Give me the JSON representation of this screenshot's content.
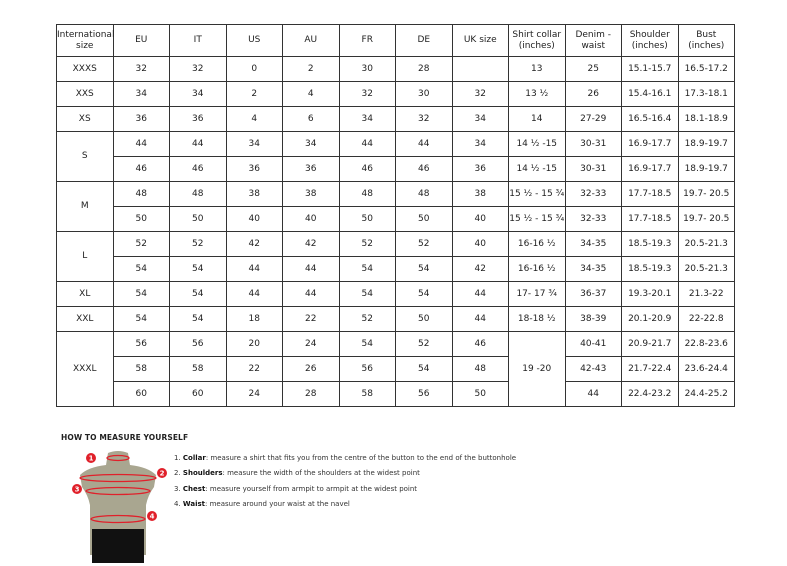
{
  "table": {
    "headers": [
      "International size",
      "EU",
      "IT",
      "US",
      "AU",
      "FR",
      "DE",
      "UK size",
      "Shirt collar (inches)",
      "Denim - waist",
      "Shoulder (inches)",
      "Bust (inches)"
    ],
    "groups": [
      {
        "size": "XXXS",
        "rows": [
          [
            "32",
            "32",
            "0",
            "2",
            "30",
            "28",
            "",
            "13",
            "25",
            "15.1-15.7",
            "16.5-17.2"
          ]
        ]
      },
      {
        "size": "XXS",
        "rows": [
          [
            "34",
            "34",
            "2",
            "4",
            "32",
            "30",
            "32",
            "13 ½",
            "26",
            "15.4-16.1",
            "17.3-18.1"
          ]
        ]
      },
      {
        "size": "XS",
        "rows": [
          [
            "36",
            "36",
            "4",
            "6",
            "34",
            "32",
            "34",
            "14",
            "27-29",
            "16.5-16.4",
            "18.1-18.9"
          ]
        ]
      },
      {
        "size": "S",
        "rows": [
          [
            "44",
            "44",
            "34",
            "34",
            "44",
            "44",
            "34",
            "14 ½ -15",
            "30-31",
            "16.9-17.7",
            "18.9-19.7"
          ],
          [
            "46",
            "46",
            "36",
            "36",
            "46",
            "46",
            "36",
            "14 ½ -15",
            "30-31",
            "16.9-17.7",
            "18.9-19.7"
          ]
        ]
      },
      {
        "size": "M",
        "rows": [
          [
            "48",
            "48",
            "38",
            "38",
            "48",
            "48",
            "38",
            "15 ½ - 15 ¾",
            "32-33",
            "17.7-18.5",
            "19.7- 20.5"
          ],
          [
            "50",
            "50",
            "40",
            "40",
            "50",
            "50",
            "40",
            "15 ½ - 15 ¾",
            "32-33",
            "17.7-18.5",
            "19.7- 20.5"
          ]
        ]
      },
      {
        "size": "L",
        "rows": [
          [
            "52",
            "52",
            "42",
            "42",
            "52",
            "52",
            "40",
            "16-16 ½",
            "34-35",
            "18.5-19.3",
            "20.5-21.3"
          ],
          [
            "54",
            "54",
            "44",
            "44",
            "54",
            "54",
            "42",
            "16-16 ½",
            "34-35",
            "18.5-19.3",
            "20.5-21.3"
          ]
        ]
      },
      {
        "size": "XL",
        "rows": [
          [
            "54",
            "54",
            "44",
            "44",
            "54",
            "54",
            "44",
            "17- 17 ¾",
            "36-37",
            "19.3-20.1",
            "21.3-22"
          ]
        ]
      },
      {
        "size": "XXL",
        "rows": [
          [
            "54",
            "54",
            "18",
            "22",
            "52",
            "50",
            "44",
            "18-18 ½",
            "38-39",
            "20.1-20.9",
            "22-22.8"
          ]
        ]
      },
      {
        "size": "XXXL",
        "collar": "19 -20",
        "rows": [
          [
            "56",
            "56",
            "20",
            "24",
            "54",
            "52",
            "46",
            null,
            "40-41",
            "20.9-21.7",
            "22.8-23.6"
          ],
          [
            "58",
            "58",
            "22",
            "26",
            "56",
            "54",
            "48",
            null,
            "42-43",
            "21.7-22.4",
            "23.6-24.4"
          ],
          [
            "60",
            "60",
            "24",
            "28",
            "58",
            "56",
            "50",
            null,
            "44",
            "22.4-23.2",
            "24.4-25.2"
          ]
        ]
      }
    ]
  },
  "howto": {
    "title": "HOW TO MEASURE YOURSELF",
    "steps": [
      {
        "num": "1.",
        "term": "Collar",
        "text": ": measure a shirt that fits you from the centre of the button to the end of the buttonhole"
      },
      {
        "num": "2.",
        "term": "Shoulders",
        "text": ": measure the width of the shoulders at the widest point"
      },
      {
        "num": "3.",
        "term": "Chest",
        "text": ": measure yourself from armpit to armpit at the widest point"
      },
      {
        "num": "4.",
        "term": "Waist",
        "text": ": measure around your waist at the navel"
      }
    ],
    "markers": [
      "1",
      "2",
      "3",
      "4"
    ],
    "colors": {
      "marker": "#e0202a",
      "torso": "#a9a690",
      "shorts": "#111111"
    }
  }
}
